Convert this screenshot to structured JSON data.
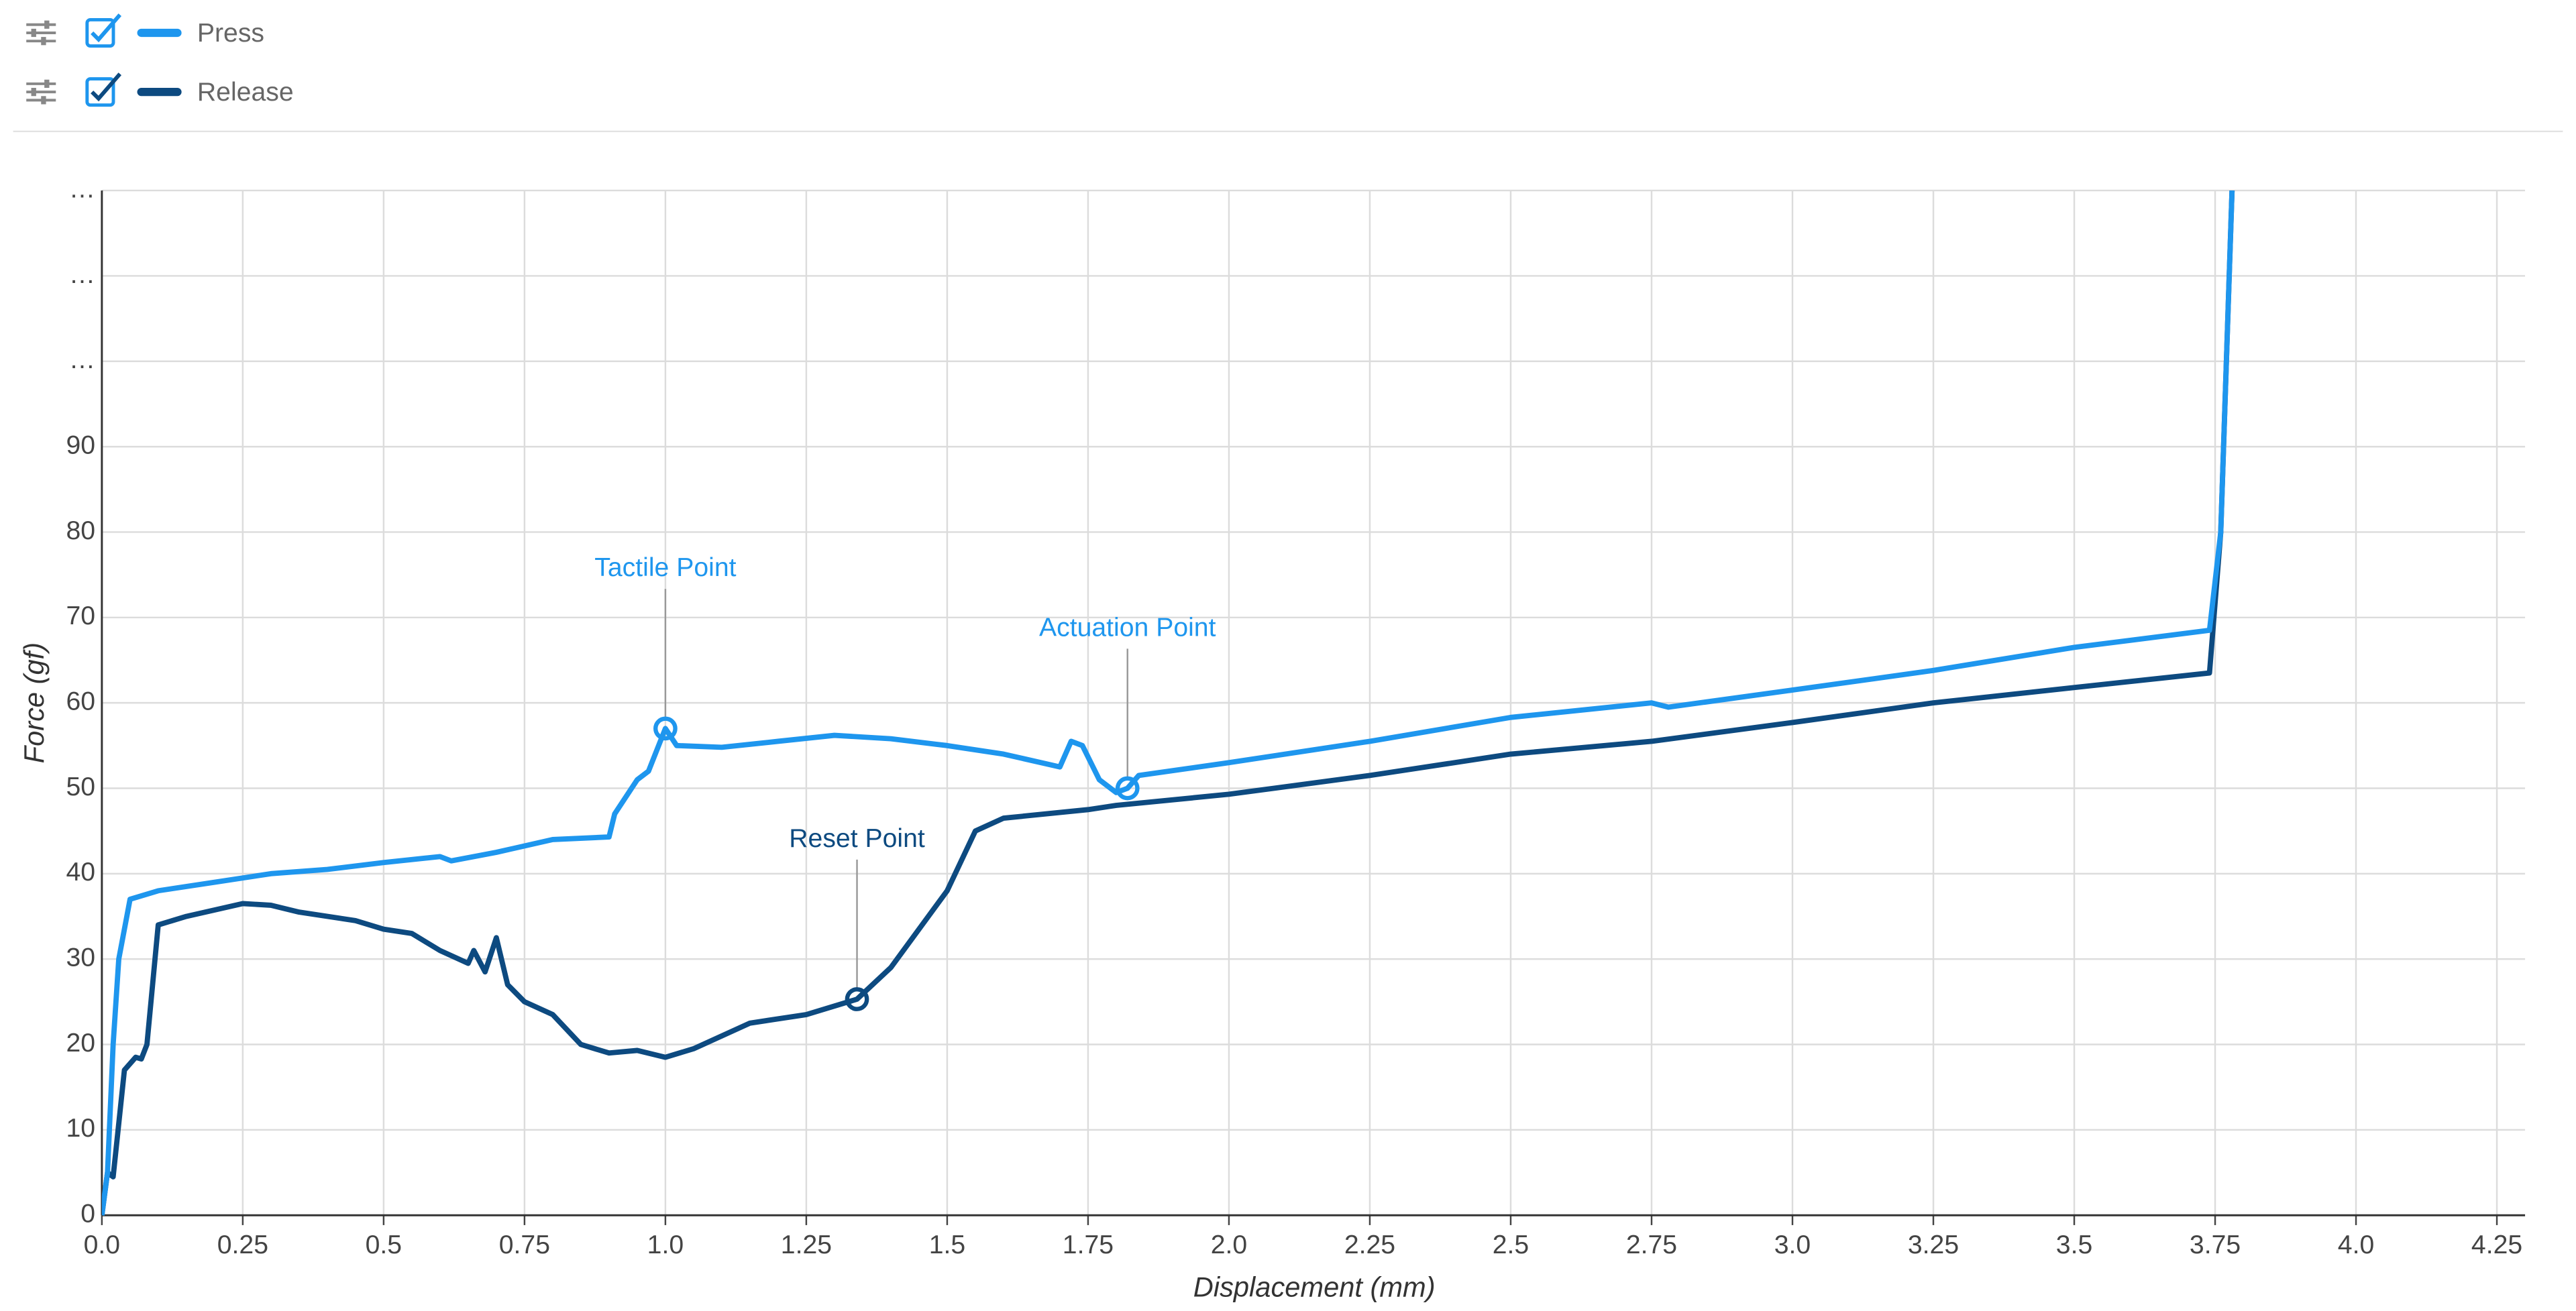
{
  "chart_data": {
    "type": "line",
    "x_label": "Displacement (mm)",
    "y_label": "Force (gf)",
    "xlim": [
      0,
      4.3
    ],
    "ylim": [
      0,
      120
    ],
    "xticks": [
      {
        "value": 0,
        "label": "0.0"
      },
      0.25,
      0.5,
      0.75,
      {
        "value": 1,
        "label": "1.0"
      },
      1.25,
      1.5,
      1.75,
      {
        "value": 2,
        "label": "2.0"
      },
      2.25,
      2.5,
      2.75,
      {
        "value": 3,
        "label": "3.0"
      },
      3.25,
      3.5,
      3.75,
      {
        "value": 4,
        "label": "4.0"
      },
      4.25
    ],
    "yticks": [
      0,
      10,
      20,
      30,
      40,
      50,
      60,
      70,
      80,
      90,
      {
        "value": 100,
        "label": "…"
      },
      {
        "value": 110,
        "label": "…"
      },
      {
        "value": 120,
        "label": "…"
      }
    ],
    "grid": true,
    "series": [
      {
        "name": "Press",
        "color": "#1e96ee",
        "x": [
          0,
          0.01,
          0.02,
          0.03,
          0.05,
          0.1,
          0.2,
          0.3,
          0.4,
          0.5,
          0.6,
          0.62,
          0.7,
          0.8,
          0.9,
          0.91,
          0.95,
          0.97,
          1.0,
          1.02,
          1.1,
          1.2,
          1.3,
          1.4,
          1.5,
          1.6,
          1.7,
          1.72,
          1.74,
          1.77,
          1.8,
          1.82,
          1.84,
          2.0,
          2.25,
          2.5,
          2.75,
          2.78,
          3.0,
          3.25,
          3.5,
          3.74,
          3.76,
          3.78
        ],
        "values": [
          0,
          5,
          20,
          30,
          37,
          38,
          39,
          40,
          40.5,
          41.3,
          42,
          41.5,
          42.5,
          44,
          44.3,
          47,
          51,
          52,
          57,
          55,
          54.8,
          55.5,
          56.2,
          55.8,
          55,
          54,
          52.5,
          55.5,
          55,
          51,
          49.5,
          50,
          51.5,
          53,
          55.5,
          58.3,
          60,
          59.5,
          61.5,
          63.8,
          66.5,
          68.5,
          80,
          120
        ]
      },
      {
        "name": "Release",
        "color": "#0d4a80",
        "x": [
          0,
          0.01,
          0.02,
          0.04,
          0.06,
          0.07,
          0.08,
          0.1,
          0.15,
          0.25,
          0.3,
          0.35,
          0.45,
          0.5,
          0.55,
          0.6,
          0.65,
          0.66,
          0.68,
          0.7,
          0.72,
          0.75,
          0.8,
          0.85,
          0.9,
          0.95,
          1.0,
          1.05,
          1.1,
          1.15,
          1.25,
          1.34,
          1.4,
          1.5,
          1.55,
          1.6,
          1.75,
          1.8,
          2.0,
          2.25,
          2.5,
          2.75,
          3.0,
          3.25,
          3.5,
          3.74,
          3.76,
          3.78
        ],
        "values": [
          0,
          5,
          4.5,
          17,
          18.5,
          18.3,
          20,
          34,
          35,
          36.5,
          36.3,
          35.5,
          34.5,
          33.5,
          33,
          31,
          29.5,
          31,
          28.5,
          32.5,
          27,
          25,
          23.5,
          20,
          19,
          19.3,
          18.5,
          19.5,
          21,
          22.5,
          23.5,
          25.3,
          29,
          38,
          45,
          46.5,
          47.5,
          48,
          49.3,
          51.5,
          54,
          55.5,
          57.7,
          60,
          61.8,
          63.5,
          80,
          120
        ]
      }
    ],
    "annotations": [
      {
        "text": "Tactile Point",
        "series": 0,
        "x": 1.0,
        "y": 57
      },
      {
        "text": "Actuation Point",
        "series": 0,
        "x": 1.82,
        "y": 50
      },
      {
        "text": "Reset Point",
        "series": 1,
        "x": 1.34,
        "y": 25.3
      }
    ]
  }
}
